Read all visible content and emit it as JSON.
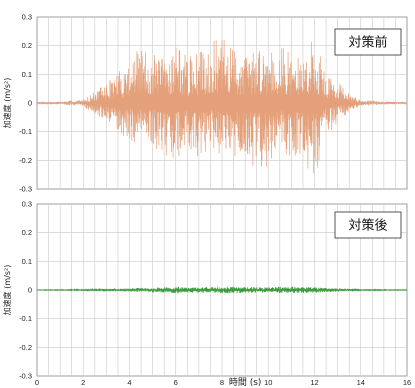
{
  "chart_data": [
    {
      "type": "line",
      "title": "対策前",
      "ylabel": "加速度 (m/s²)",
      "xlabel": "",
      "xlim": [
        0,
        16
      ],
      "ylim": [
        -0.3,
        0.3
      ],
      "yticks": [
        "0.3",
        "0.2",
        "0.1",
        "0",
        "-0.1",
        "-0.2",
        "-0.3"
      ],
      "grid": true,
      "series": [
        {
          "color": "#E3A07A",
          "x": [
            0,
            1,
            2,
            2.5,
            3,
            3.5,
            4,
            4.5,
            5,
            5.5,
            6,
            6.5,
            7,
            7.5,
            8,
            8.5,
            9,
            9.5,
            10,
            10.5,
            11,
            11.5,
            12,
            12.5,
            13,
            13.5,
            14,
            15,
            16
          ],
          "max": [
            0.003,
            0.005,
            0.012,
            0.04,
            0.07,
            0.11,
            0.15,
            0.2,
            0.17,
            0.16,
            0.22,
            0.16,
            0.18,
            0.21,
            0.23,
            0.2,
            0.17,
            0.19,
            0.2,
            0.21,
            0.17,
            0.15,
            0.24,
            0.1,
            0.08,
            0.03,
            0.012,
            0.005,
            0.003
          ],
          "min": [
            -0.003,
            -0.005,
            -0.012,
            -0.04,
            -0.07,
            -0.11,
            -0.13,
            -0.16,
            -0.15,
            -0.18,
            -0.2,
            -0.17,
            -0.2,
            -0.16,
            -0.19,
            -0.21,
            -0.18,
            -0.24,
            -0.22,
            -0.17,
            -0.19,
            -0.2,
            -0.27,
            -0.12,
            -0.07,
            -0.03,
            -0.012,
            -0.005,
            -0.003
          ]
        }
      ]
    },
    {
      "type": "line",
      "title": "対策後",
      "ylabel": "加速度 (m/s²)",
      "xlabel": "時間 (s)",
      "xlim": [
        0,
        16
      ],
      "ylim": [
        -0.3,
        0.3
      ],
      "xticks": [
        "0",
        "2",
        "4",
        "6",
        "8",
        "10",
        "12",
        "14",
        "16"
      ],
      "yticks": [
        "0.3",
        "0.2",
        "0.1",
        "0",
        "-0.1",
        "-0.2",
        "-0.3"
      ],
      "grid": true,
      "series": [
        {
          "color": "#3C9A3C",
          "x": [
            0,
            2,
            3,
            4,
            5,
            6,
            7,
            8,
            9,
            10,
            11,
            12,
            13,
            14,
            16
          ],
          "max": [
            0.001,
            0.002,
            0.004,
            0.006,
            0.009,
            0.012,
            0.01,
            0.012,
            0.011,
            0.01,
            0.012,
            0.01,
            0.006,
            0.002,
            0.001
          ],
          "min": [
            -0.001,
            -0.002,
            -0.004,
            -0.006,
            -0.009,
            -0.012,
            -0.01,
            -0.012,
            -0.011,
            -0.01,
            -0.012,
            -0.01,
            -0.006,
            -0.002,
            -0.001
          ]
        }
      ]
    }
  ]
}
